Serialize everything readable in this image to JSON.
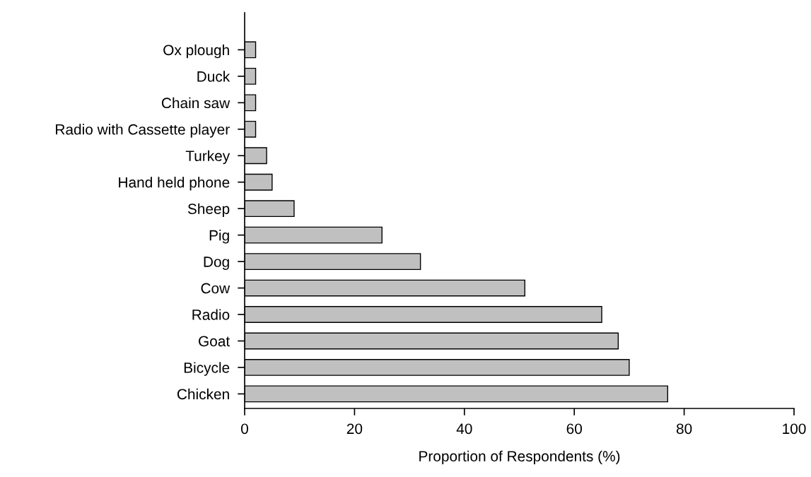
{
  "chart_data": {
    "type": "bar",
    "orientation": "horizontal",
    "xlabel": "Proportion of Respondents (%)",
    "categories": [
      "Ox plough",
      "Duck",
      "Chain saw",
      "Radio with Cassette player",
      "Turkey",
      "Hand held phone",
      "Sheep",
      "Pig",
      "Dog",
      "Cow",
      "Radio",
      "Goat",
      "Bicycle",
      "Chicken"
    ],
    "values": [
      2,
      2,
      2,
      2,
      4,
      5,
      9,
      25,
      32,
      51,
      65,
      68,
      70,
      77
    ],
    "color": "#c0c0c0",
    "xlim": [
      0,
      100
    ],
    "xticks": [
      0,
      20,
      40,
      60,
      80,
      100
    ],
    "grid": false,
    "legend": false
  }
}
